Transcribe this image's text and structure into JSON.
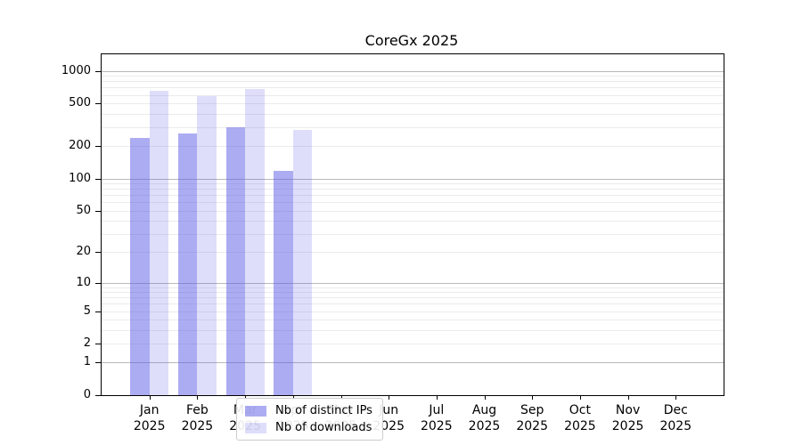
{
  "title": "CoreGx 2025",
  "chart_data": {
    "type": "bar",
    "title": "CoreGx 2025",
    "categories": [
      "Jan 2025",
      "Feb 2025",
      "Mar 2025",
      "Apr 2025",
      "May 2025",
      "Jun 2025",
      "Jul 2025",
      "Aug 2025",
      "Sep 2025",
      "Oct 2025",
      "Nov 2025",
      "Dec 2025"
    ],
    "series": [
      {
        "name": "Nb of distinct IPs",
        "color": "rgba(90,90,230,0.5)",
        "values": [
          240,
          265,
          300,
          118,
          0,
          0,
          0,
          0,
          0,
          0,
          0,
          0
        ]
      },
      {
        "name": "Nb of downloads",
        "color": "rgba(90,90,230,0.2)",
        "values": [
          655,
          585,
          685,
          283,
          0,
          0,
          0,
          0,
          0,
          0,
          0,
          0
        ]
      }
    ],
    "xlabel": "",
    "ylabel": "",
    "yscale": "log1p",
    "ylim": [
      0,
      1425
    ],
    "y_ticks": [
      0,
      1,
      2,
      5,
      10,
      20,
      50,
      100,
      200,
      500,
      1000
    ],
    "grid": {
      "axis": "y",
      "major_color": "#b8b8b8",
      "minor_color": "#ebebeb"
    },
    "legend_position": "lower center-left"
  },
  "legend": {
    "items": [
      {
        "label": "Nb of distinct IPs",
        "swatch_color": "rgba(90,90,230,0.5)"
      },
      {
        "label": "Nb of downloads",
        "swatch_color": "rgba(90,90,230,0.2)"
      }
    ]
  },
  "colors": {
    "spine": "#000000",
    "background": "#ffffff"
  }
}
